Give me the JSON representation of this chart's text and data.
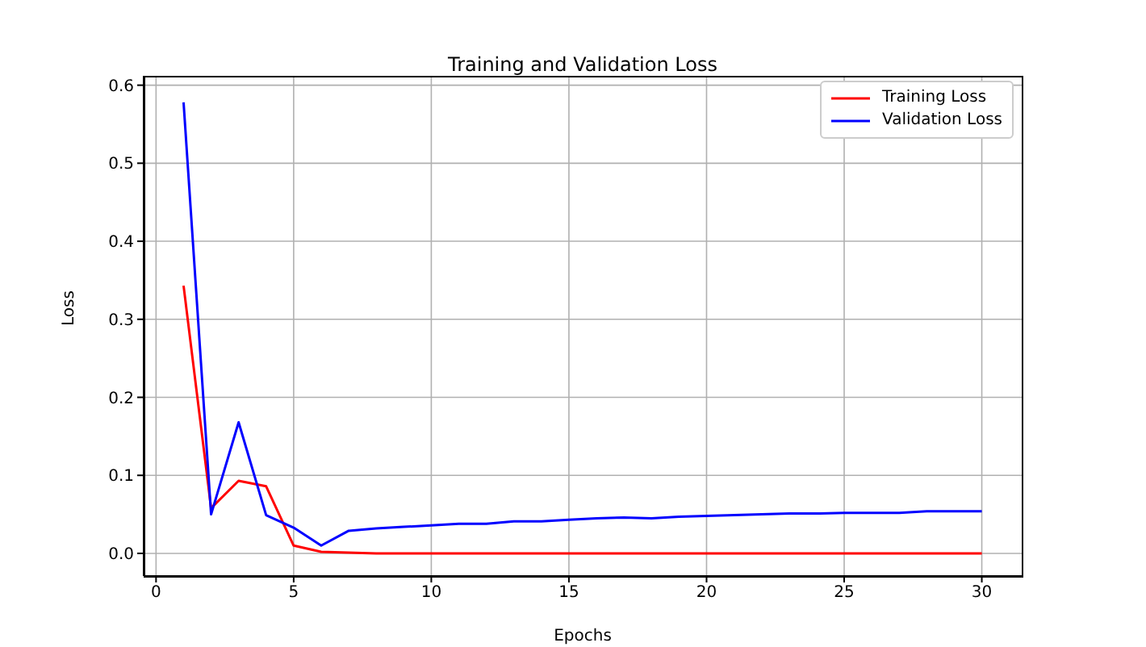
{
  "chart_data": {
    "type": "line",
    "title": "Training and Validation Loss",
    "xlabel": "Epochs",
    "ylabel": "Loss",
    "x": [
      1,
      2,
      3,
      4,
      5,
      6,
      7,
      8,
      9,
      10,
      11,
      12,
      13,
      14,
      15,
      16,
      17,
      18,
      19,
      20,
      21,
      22,
      23,
      24,
      25,
      26,
      27,
      28,
      29,
      30
    ],
    "series": [
      {
        "name": "Training Loss",
        "color": "#ff0000",
        "values": [
          0.343,
          0.058,
          0.093,
          0.086,
          0.01,
          0.002,
          0.001,
          0.0,
          0.0,
          0.0,
          0.0,
          0.0,
          0.0,
          0.0,
          0.0,
          0.0,
          0.0,
          0.0,
          0.0,
          0.0,
          0.0,
          0.0,
          0.0,
          0.0,
          0.0,
          0.0,
          0.0,
          0.0,
          0.0,
          0.0
        ]
      },
      {
        "name": "Validation Loss",
        "color": "#0000ff",
        "values": [
          0.578,
          0.05,
          0.168,
          0.049,
          0.033,
          0.01,
          0.029,
          0.032,
          0.034,
          0.036,
          0.038,
          0.038,
          0.041,
          0.041,
          0.043,
          0.045,
          0.046,
          0.045,
          0.047,
          0.048,
          0.049,
          0.05,
          0.051,
          0.051,
          0.052,
          0.052,
          0.052,
          0.054,
          0.054,
          0.054
        ]
      }
    ],
    "xlim": [
      -0.45,
      31.45
    ],
    "xticks": [
      0,
      5,
      10,
      15,
      20,
      25,
      30
    ],
    "ylim": [
      -0.029,
      0.612
    ],
    "yticks": [
      {
        "value": 0,
        "label": "0.0"
      },
      {
        "value": 0.1,
        "label": "0.1"
      },
      {
        "value": 0.2,
        "label": "0.2"
      },
      {
        "value": 0.3,
        "label": "0.3"
      },
      {
        "value": 0.4,
        "label": "0.4"
      },
      {
        "value": 0.5,
        "label": "0.5"
      },
      {
        "value": 0.6,
        "label": "0.6"
      }
    ],
    "grid": true,
    "legend": "top right",
    "marker": "none",
    "line_style": "solid"
  }
}
